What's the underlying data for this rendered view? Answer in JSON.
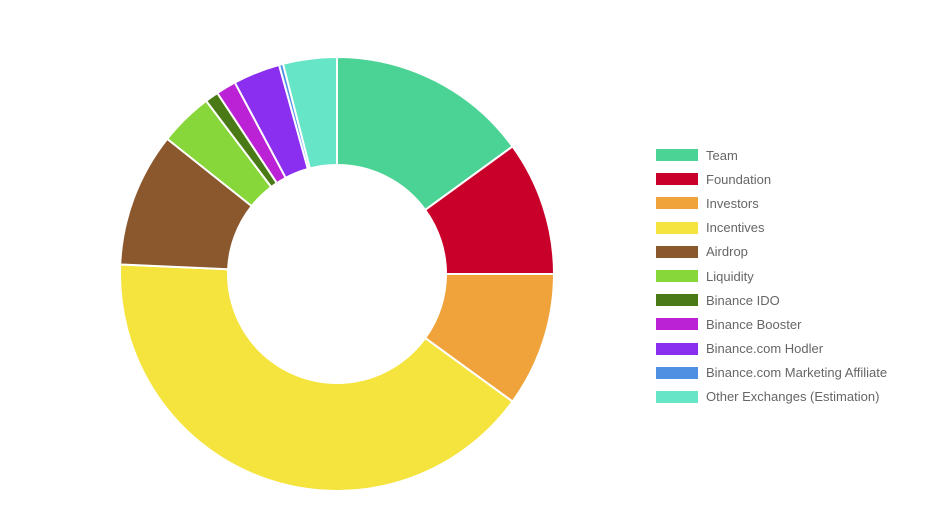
{
  "chart_data": {
    "type": "pie",
    "variant": "doughnut",
    "categories": [
      "Team",
      "Foundation",
      "Investors",
      "Incentives",
      "Airdrop",
      "Liquidity",
      "Binance IDO",
      "Binance Booster",
      "Binance.com Hodler",
      "Binance.com Marketing Affiliate",
      "Other Exchanges (Estimation)"
    ],
    "values": [
      15,
      10,
      10,
      40.7,
      10,
      4,
      1,
      1.5,
      3.5,
      0.3,
      4
    ],
    "colors": [
      "#4ad395",
      "#c9002a",
      "#f0a33a",
      "#f5e43e",
      "#8b572d",
      "#88d73a",
      "#4a7a16",
      "#bb22d6",
      "#8a2ef0",
      "#4f90e3",
      "#66e6c6"
    ],
    "title": "",
    "legend_position": "right"
  }
}
